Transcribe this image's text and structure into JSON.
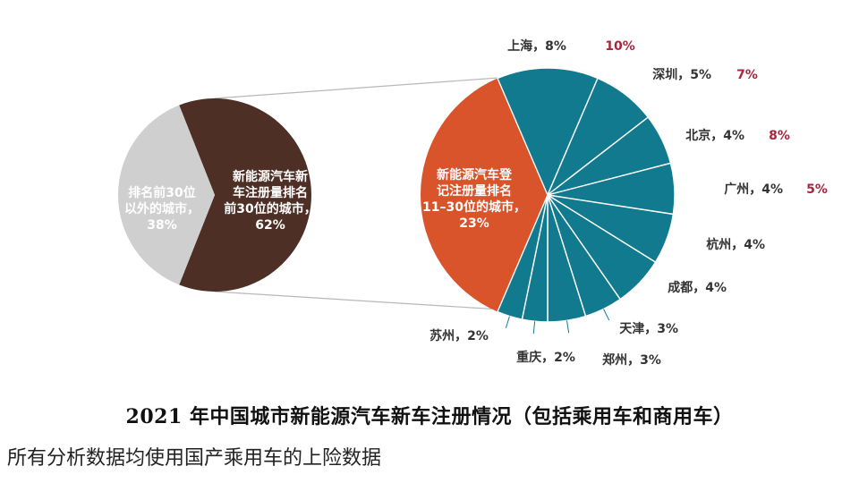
{
  "chart_data": {
    "type": "pie",
    "title": "2021 年中国城市新能源汽车新车注册情况（包括乘用车和商用车）",
    "note": "所有分析数据均使用国产乘用车的上险数据",
    "left_pie": {
      "slices": [
        {
          "label_lines": [
            "新能源汽车新",
            "车注册量排名",
            "前30位的城市，"
          ],
          "value_text": "62%",
          "value": 62,
          "color": "#4e2f25"
        },
        {
          "label_lines": [
            "排名前30位",
            "以外的城市，"
          ],
          "value_text": "38%",
          "value": 38,
          "color": "#cfcfcf"
        }
      ]
    },
    "right_pie": {
      "big_slice": {
        "label_lines": [
          "新能源汽车登",
          "记注册量排名",
          "11–30位的城市，"
        ],
        "value_text": "23%",
        "value": 23,
        "color": "#d9532b"
      },
      "cities": [
        {
          "name": "上海",
          "value": 8,
          "value_text": "8%",
          "extra": "10%"
        },
        {
          "name": "深圳",
          "value": 5,
          "value_text": "5%",
          "extra": "7%"
        },
        {
          "name": "北京",
          "value": 4,
          "value_text": "4%",
          "extra": "8%"
        },
        {
          "name": "广州",
          "value": 4,
          "value_text": "4%",
          "extra": "5%"
        },
        {
          "name": "杭州",
          "value": 4,
          "value_text": "4%",
          "extra": ""
        },
        {
          "name": "成都",
          "value": 4,
          "value_text": "4%",
          "extra": ""
        },
        {
          "name": "天津",
          "value": 3,
          "value_text": "3%",
          "extra": ""
        },
        {
          "name": "郑州",
          "value": 3,
          "value_text": "3%",
          "extra": ""
        },
        {
          "name": "重庆",
          "value": 2,
          "value_text": "2%",
          "extra": ""
        },
        {
          "name": "苏州",
          "value": 2,
          "value_text": "2%",
          "extra": ""
        }
      ],
      "city_color": "#127a8f",
      "extra_color": "#a8253b"
    }
  }
}
